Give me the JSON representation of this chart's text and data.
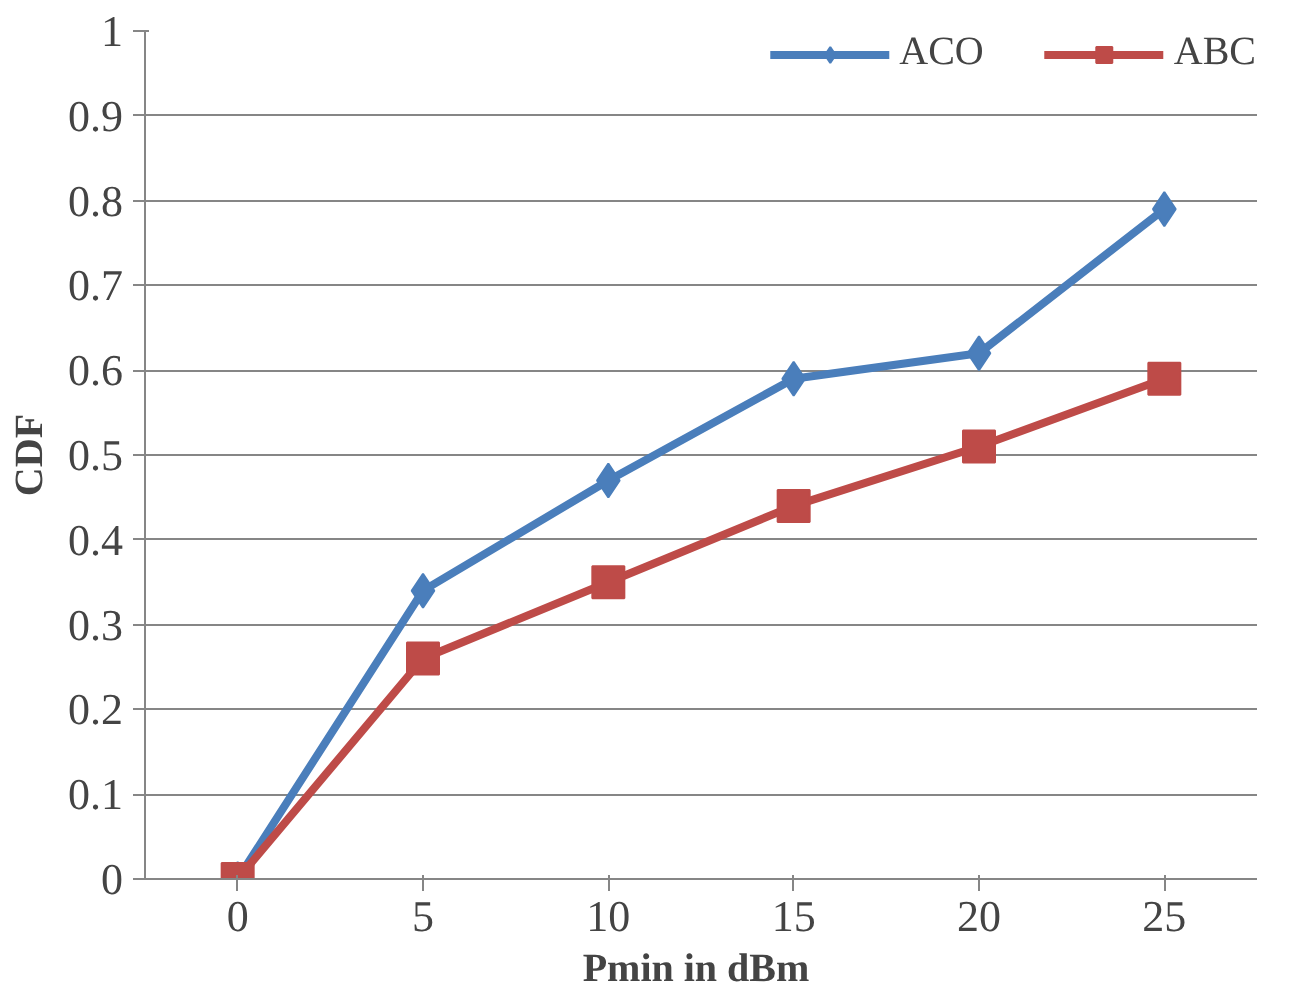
{
  "chart_data": {
    "type": "line",
    "xlabel": "Pmin  in dBm",
    "ylabel": "CDF",
    "categories": [
      "0",
      "5",
      "10",
      "15",
      "20",
      "25"
    ],
    "series": [
      {
        "name": "ACO",
        "color": "#4a7ebb",
        "values": [
          0,
          0.34,
          0.47,
          0.59,
          0.62,
          0.79
        ],
        "marker": "diamond"
      },
      {
        "name": "ABC",
        "color": "#be4b48",
        "values": [
          0,
          0.26,
          0.35,
          0.44,
          0.51,
          0.59
        ],
        "marker": "square"
      }
    ],
    "ylim": [
      0,
      1
    ],
    "yticks": [
      0,
      0.1,
      0.2,
      0.3,
      0.4,
      0.5,
      0.6,
      0.7,
      0.8,
      0.9,
      1
    ],
    "grid": "y",
    "legend": "top right",
    "line_style": "solid"
  }
}
